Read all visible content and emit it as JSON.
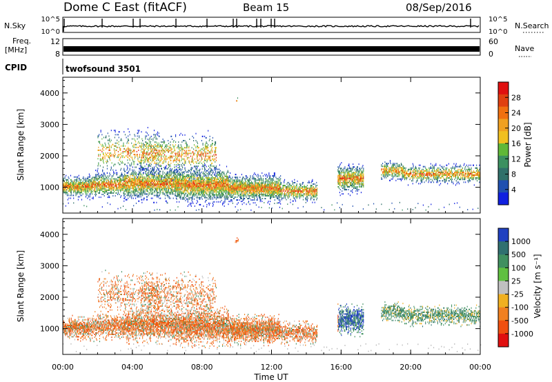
{
  "header": {
    "station": "Dome C East (fitACF)",
    "beam": "Beam 15",
    "date": "08/Sep/2016"
  },
  "strips": {
    "nsky": {
      "label": "N.Sky",
      "left_top": "10^5",
      "left_bot": "10^0",
      "right_top": "10^5",
      "right_bot": "10^0",
      "right_label": "N.Search"
    },
    "freq": {
      "label1": "Freq.",
      "label2": "[MHz]",
      "left_top": "12",
      "left_bot": "8",
      "right_top": "60",
      "right_bot": "0",
      "right_label": "Nave"
    },
    "cpid": {
      "label": "CPID",
      "value": "twofsound 3501"
    }
  },
  "colors": {
    "power": [
      "#1020e0",
      "#2050b0",
      "#30706a",
      "#3c9060",
      "#60b838",
      "#f0c020",
      "#f0a020",
      "#f07010",
      "#e04010",
      "#e01010"
    ],
    "velocity": [
      "#e01010",
      "#f05010",
      "#f08020",
      "#f0b020",
      "#c0c0c0",
      "#60c040",
      "#409060",
      "#307070",
      "#2040c0"
    ]
  },
  "chart_data": [
    {
      "type": "heatmap",
      "panel": "power",
      "ylabel": "Slant Range [km]",
      "ylim": [
        180,
        4500
      ],
      "xlim": [
        0,
        24
      ],
      "yticks": [
        "1000",
        "2000",
        "3000",
        "4000"
      ],
      "colorbar": {
        "title": "Power [dB]",
        "ticks": [
          "4",
          "8",
          "12",
          "16",
          "20",
          "24",
          "28"
        ],
        "range": [
          0,
          32
        ]
      }
    },
    {
      "type": "heatmap",
      "panel": "velocity",
      "ylabel": "Slant Range [km]",
      "ylim": [
        180,
        4500
      ],
      "xlim": [
        0,
        24
      ],
      "yticks": [
        "1000",
        "2000",
        "3000",
        "4000"
      ],
      "colorbar": {
        "title": "Velocity [m s⁻¹]",
        "ticks": [
          "1000",
          "500",
          "100",
          "25",
          "-25",
          "-100",
          "-500",
          "-1000"
        ]
      }
    }
  ],
  "xaxis": {
    "xlabel": "Time UT",
    "xticks": [
      "00:00",
      "04:00",
      "08:00",
      "12:00",
      "16:00",
      "20:00",
      "00:00"
    ]
  }
}
